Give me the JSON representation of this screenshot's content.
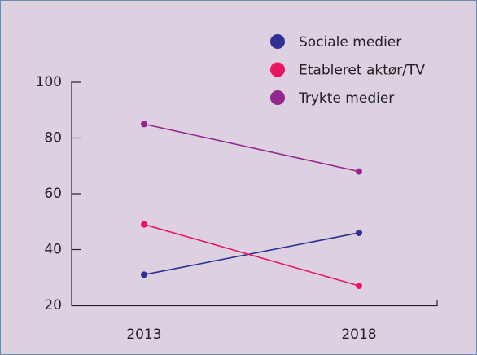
{
  "chart_data": {
    "type": "line",
    "categories": [
      "2013",
      "2018"
    ],
    "series": [
      {
        "name": "Sociale medier",
        "color": "#2e3192",
        "values": [
          31,
          46
        ]
      },
      {
        "name": "Etableret aktør/TV",
        "color": "#e8175d",
        "values": [
          49,
          27
        ]
      },
      {
        "name": "Trykte medier",
        "color": "#93278f",
        "values": [
          85,
          68
        ]
      }
    ],
    "ylim": [
      20,
      100
    ],
    "yticks": [
      20,
      40,
      60,
      80,
      100
    ],
    "legend": "top-right"
  }
}
